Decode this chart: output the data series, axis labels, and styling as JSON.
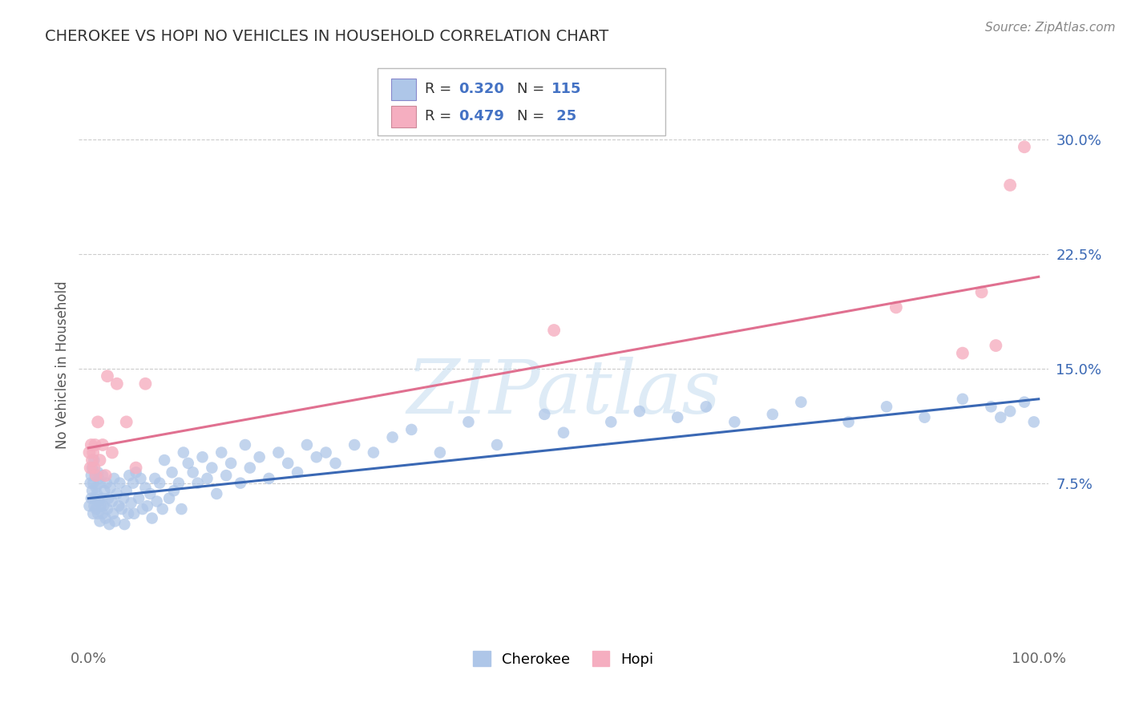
{
  "title": "CHEROKEE VS HOPI NO VEHICLES IN HOUSEHOLD CORRELATION CHART",
  "source": "Source: ZipAtlas.com",
  "ylabel": "No Vehicles in Household",
  "ytick_positions": [
    0.075,
    0.15,
    0.225,
    0.3
  ],
  "ytick_labels": [
    "7.5%",
    "15.0%",
    "22.5%",
    "30.0%"
  ],
  "xtick_positions": [
    0.0,
    1.0
  ],
  "xtick_labels": [
    "0.0%",
    "100.0%"
  ],
  "xlim": [
    -0.01,
    1.01
  ],
  "ylim": [
    -0.03,
    0.335
  ],
  "cherokee_color": "#aec6e8",
  "hopi_color": "#f5aec0",
  "cherokee_line_color": "#3a68b4",
  "hopi_line_color": "#e07090",
  "cherokee_R": 0.32,
  "cherokee_N": 115,
  "hopi_R": 0.479,
  "hopi_N": 25,
  "legend_color": "#4472c4",
  "background_color": "#ffffff",
  "grid_color": "#cccccc",
  "title_color": "#333333",
  "watermark_color": "#c8dff0",
  "cherokee_x": [
    0.001,
    0.002,
    0.003,
    0.003,
    0.004,
    0.004,
    0.005,
    0.005,
    0.006,
    0.006,
    0.007,
    0.007,
    0.008,
    0.008,
    0.009,
    0.01,
    0.01,
    0.011,
    0.011,
    0.012,
    0.012,
    0.013,
    0.014,
    0.015,
    0.015,
    0.016,
    0.017,
    0.018,
    0.019,
    0.02,
    0.021,
    0.022,
    0.023,
    0.025,
    0.026,
    0.027,
    0.028,
    0.03,
    0.032,
    0.033,
    0.035,
    0.037,
    0.038,
    0.04,
    0.042,
    0.043,
    0.045,
    0.047,
    0.048,
    0.05,
    0.053,
    0.055,
    0.057,
    0.06,
    0.062,
    0.065,
    0.067,
    0.07,
    0.072,
    0.075,
    0.078,
    0.08,
    0.085,
    0.088,
    0.09,
    0.095,
    0.098,
    0.1,
    0.105,
    0.11,
    0.115,
    0.12,
    0.125,
    0.13,
    0.135,
    0.14,
    0.145,
    0.15,
    0.16,
    0.165,
    0.17,
    0.18,
    0.19,
    0.2,
    0.21,
    0.22,
    0.23,
    0.24,
    0.25,
    0.26,
    0.28,
    0.3,
    0.32,
    0.34,
    0.37,
    0.4,
    0.43,
    0.48,
    0.5,
    0.55,
    0.58,
    0.62,
    0.65,
    0.68,
    0.72,
    0.75,
    0.8,
    0.84,
    0.88,
    0.92,
    0.95,
    0.96,
    0.97,
    0.985,
    0.995
  ],
  "cherokee_y": [
    0.06,
    0.075,
    0.065,
    0.08,
    0.07,
    0.085,
    0.055,
    0.075,
    0.06,
    0.09,
    0.065,
    0.08,
    0.058,
    0.072,
    0.068,
    0.055,
    0.082,
    0.063,
    0.078,
    0.05,
    0.075,
    0.06,
    0.065,
    0.055,
    0.08,
    0.06,
    0.07,
    0.052,
    0.075,
    0.058,
    0.065,
    0.048,
    0.072,
    0.063,
    0.055,
    0.078,
    0.05,
    0.068,
    0.06,
    0.075,
    0.058,
    0.065,
    0.048,
    0.07,
    0.055,
    0.08,
    0.062,
    0.075,
    0.055,
    0.082,
    0.065,
    0.078,
    0.058,
    0.072,
    0.06,
    0.068,
    0.052,
    0.078,
    0.063,
    0.075,
    0.058,
    0.09,
    0.065,
    0.082,
    0.07,
    0.075,
    0.058,
    0.095,
    0.088,
    0.082,
    0.075,
    0.092,
    0.078,
    0.085,
    0.068,
    0.095,
    0.08,
    0.088,
    0.075,
    0.1,
    0.085,
    0.092,
    0.078,
    0.095,
    0.088,
    0.082,
    0.1,
    0.092,
    0.095,
    0.088,
    0.1,
    0.095,
    0.105,
    0.11,
    0.095,
    0.115,
    0.1,
    0.12,
    0.108,
    0.115,
    0.122,
    0.118,
    0.125,
    0.115,
    0.12,
    0.128,
    0.115,
    0.125,
    0.118,
    0.13,
    0.125,
    0.118,
    0.122,
    0.128,
    0.115
  ],
  "hopi_x": [
    0.001,
    0.002,
    0.003,
    0.004,
    0.005,
    0.006,
    0.007,
    0.008,
    0.01,
    0.012,
    0.015,
    0.018,
    0.02,
    0.025,
    0.03,
    0.04,
    0.05,
    0.06,
    0.49,
    0.85,
    0.92,
    0.94,
    0.955,
    0.97,
    0.985
  ],
  "hopi_y": [
    0.095,
    0.085,
    0.1,
    0.09,
    0.095,
    0.085,
    0.1,
    0.08,
    0.115,
    0.09,
    0.1,
    0.08,
    0.145,
    0.095,
    0.14,
    0.115,
    0.085,
    0.14,
    0.175,
    0.19,
    0.16,
    0.2,
    0.165,
    0.27,
    0.295
  ],
  "cherokee_line_start_y": 0.065,
  "cherokee_line_end_y": 0.13,
  "hopi_line_start_y": 0.098,
  "hopi_line_end_y": 0.21
}
